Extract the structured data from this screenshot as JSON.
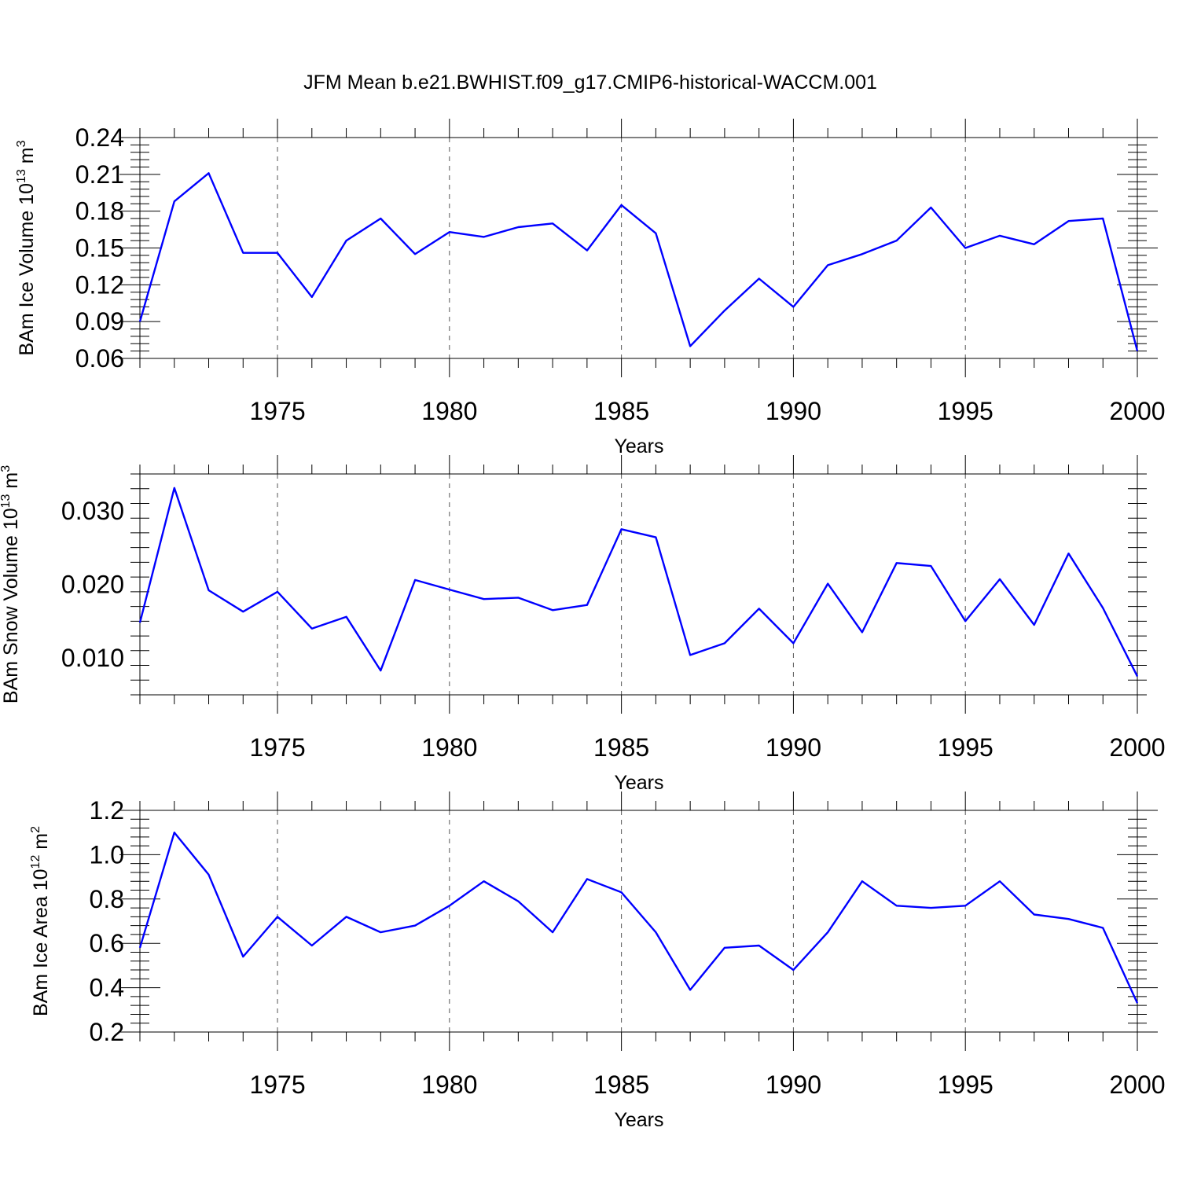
{
  "title": "JFM Mean b.e21.BWHIST.f09_g17.CMIP6-historical-WACCM.001",
  "colors": {
    "series": "#0000ff",
    "axes": "#000000",
    "grid": "#555555"
  },
  "chart_data": [
    {
      "type": "line",
      "ylabel": "BAm Ice Volume 10",
      "ylabel_exp": "13",
      "ylabel_unit": " m",
      "ylabel_unit_exp": "3",
      "xlabel": "Years",
      "xlim": [
        1971,
        2000
      ],
      "ylim": [
        0.06,
        0.24
      ],
      "xticks": [
        1975,
        1980,
        1985,
        1990,
        1995,
        2000
      ],
      "yticks": [
        0.06,
        0.09,
        0.12,
        0.15,
        0.18,
        0.21,
        0.24
      ],
      "ytick_labels": [
        "0.06",
        "0.09",
        "0.12",
        "0.15",
        "0.18",
        "0.21",
        "0.24"
      ],
      "grid": "vertical dashed at labeled years",
      "series": [
        {
          "color": "#0000ff",
          "x": [
            1971,
            1972,
            1973,
            1974,
            1975,
            1976,
            1977,
            1978,
            1979,
            1980,
            1981,
            1982,
            1983,
            1984,
            1985,
            1986,
            1987,
            1988,
            1989,
            1990,
            1991,
            1992,
            1993,
            1994,
            1995,
            1996,
            1997,
            1998,
            1999,
            2000
          ],
          "y": [
            0.09,
            0.188,
            0.211,
            0.146,
            0.146,
            0.11,
            0.156,
            0.174,
            0.145,
            0.163,
            0.159,
            0.167,
            0.17,
            0.148,
            0.185,
            0.162,
            0.07,
            0.099,
            0.125,
            0.102,
            0.136,
            0.145,
            0.156,
            0.183,
            0.15,
            0.16,
            0.153,
            0.172,
            0.174,
            0.066
          ]
        }
      ]
    },
    {
      "type": "line",
      "ylabel": "BAm Snow Volume 10",
      "ylabel_exp": "13",
      "ylabel_unit": " m",
      "ylabel_unit_exp": "3",
      "xlabel": "Years",
      "xlim": [
        1971,
        2000
      ],
      "ylim": [
        0.005,
        0.035
      ],
      "xticks": [
        1975,
        1980,
        1985,
        1990,
        1995,
        2000
      ],
      "yticks": [
        0.01,
        0.02,
        0.03
      ],
      "ytick_labels": [
        "0.010",
        "0.020",
        "0.030"
      ],
      "grid": "vertical dashed at labeled years",
      "series": [
        {
          "color": "#0000ff",
          "x": [
            1971,
            1972,
            1973,
            1974,
            1975,
            1976,
            1977,
            1978,
            1979,
            1980,
            1981,
            1982,
            1983,
            1984,
            1985,
            1986,
            1987,
            1988,
            1989,
            1990,
            1991,
            1992,
            1993,
            1994,
            1995,
            1996,
            1997,
            1998,
            1999,
            2000
          ],
          "y": [
            0.0148,
            0.0331,
            0.0192,
            0.0163,
            0.019,
            0.014,
            0.0156,
            0.0083,
            0.0206,
            0.0193,
            0.018,
            0.0182,
            0.0165,
            0.0172,
            0.0275,
            0.0264,
            0.0104,
            0.012,
            0.0167,
            0.012,
            0.0201,
            0.0135,
            0.0229,
            0.0225,
            0.015,
            0.0207,
            0.0145,
            0.0242,
            0.0168,
            0.0075
          ]
        }
      ]
    },
    {
      "type": "line",
      "ylabel": "BAm Ice Area 10",
      "ylabel_exp": "12",
      "ylabel_unit": " m",
      "ylabel_unit_exp": "2",
      "xlabel": "Years",
      "xlim": [
        1971,
        2000
      ],
      "ylim": [
        0.2,
        1.2
      ],
      "xticks": [
        1975,
        1980,
        1985,
        1990,
        1995,
        2000
      ],
      "yticks": [
        0.2,
        0.4,
        0.6,
        0.8,
        1.0,
        1.2
      ],
      "ytick_labels": [
        "0.2",
        "0.4",
        "0.6",
        "0.8",
        "1.0",
        "1.2"
      ],
      "grid": "vertical dashed at labeled years",
      "series": [
        {
          "color": "#0000ff",
          "x": [
            1971,
            1972,
            1973,
            1974,
            1975,
            1976,
            1977,
            1978,
            1979,
            1980,
            1981,
            1982,
            1983,
            1984,
            1985,
            1986,
            1987,
            1988,
            1989,
            1990,
            1991,
            1992,
            1993,
            1994,
            1995,
            1996,
            1997,
            1998,
            1999,
            2000
          ],
          "y": [
            0.58,
            1.1,
            0.91,
            0.54,
            0.72,
            0.59,
            0.72,
            0.65,
            0.68,
            0.77,
            0.88,
            0.79,
            0.65,
            0.89,
            0.83,
            0.65,
            0.39,
            0.58,
            0.59,
            0.48,
            0.65,
            0.88,
            0.77,
            0.76,
            0.77,
            0.88,
            0.73,
            0.71,
            0.67,
            0.33
          ]
        }
      ]
    }
  ]
}
